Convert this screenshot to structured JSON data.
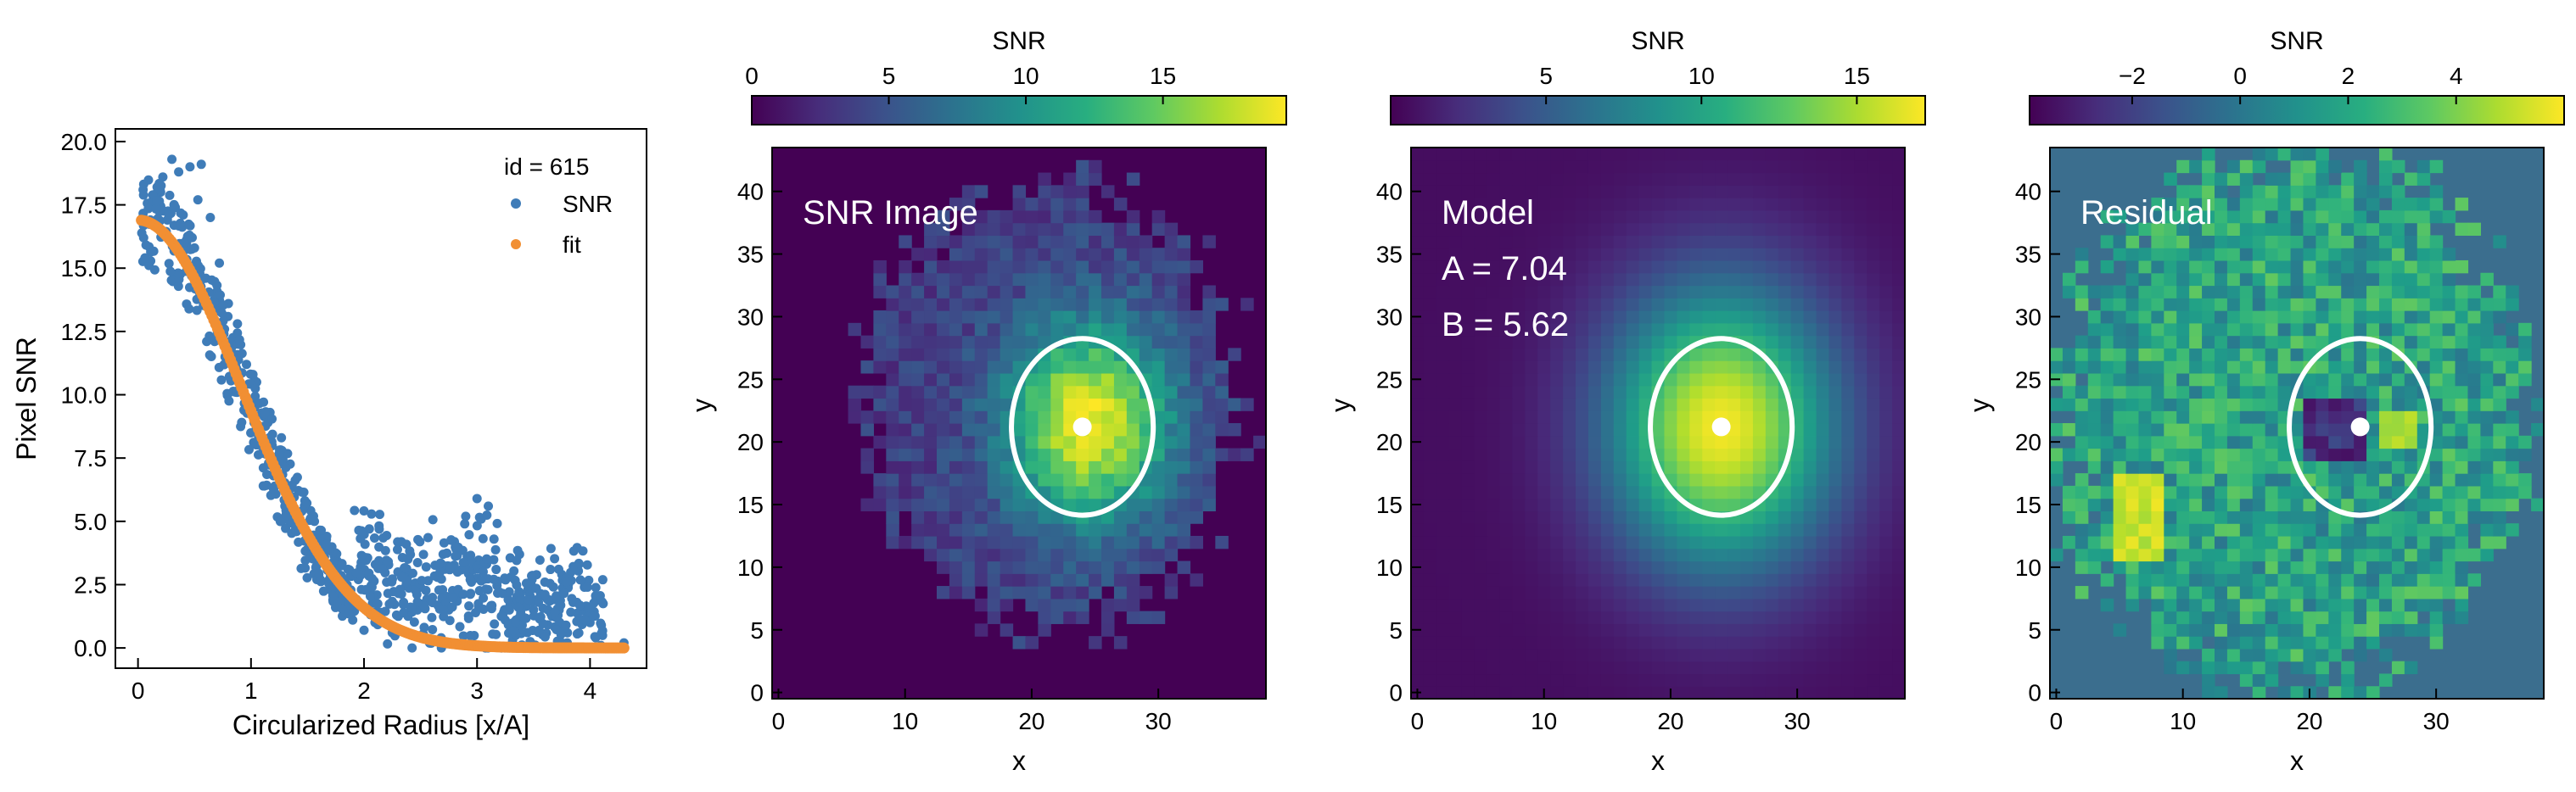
{
  "chart_data": [
    {
      "type": "scatter",
      "id_label": "id = 615",
      "xlabel": "Circularized Radius [x/A]",
      "ylabel": "Pixel SNR",
      "xlim": [
        -0.2,
        4.5
      ],
      "ylim": [
        -0.8,
        20.5
      ],
      "xticks": [
        0,
        1,
        2,
        3,
        4
      ],
      "xtick_labels": [
        "0",
        "1",
        "2",
        "3",
        "4"
      ],
      "yticks": [
        0.0,
        2.5,
        5.0,
        7.5,
        10.0,
        12.5,
        15.0,
        17.5,
        20.0
      ],
      "ytick_labels": [
        "0.0",
        "2.5",
        "5.0",
        "7.5",
        "10.0",
        "12.5",
        "15.0",
        "17.5",
        "20.0"
      ],
      "legend_position": "top-right",
      "series": [
        {
          "name": "SNR",
          "color": "#3f7cb8",
          "x": [
            0.05,
            0.12,
            0.16,
            0.2,
            0.22,
            0.26,
            0.3,
            0.33,
            0.36,
            0.4,
            0.43,
            0.46,
            0.5,
            0.53,
            0.56,
            0.6,
            0.64,
            0.68,
            0.72,
            0.76,
            0.8,
            0.84,
            0.88,
            0.92,
            0.96,
            1.0,
            1.05,
            1.1,
            1.15,
            1.2,
            1.25,
            1.3,
            1.35,
            1.4,
            1.45,
            1.5,
            1.55,
            1.6,
            1.65,
            1.7,
            1.75,
            1.8,
            1.85,
            1.9,
            1.95,
            2.0,
            2.05,
            2.1,
            2.15,
            2.2,
            2.25,
            2.3,
            2.35,
            2.4,
            2.45,
            2.5,
            2.55,
            2.6,
            2.65,
            2.7,
            2.75,
            2.8,
            2.85,
            2.9,
            2.95,
            3.0,
            3.05,
            3.1,
            3.15,
            3.2,
            3.25,
            3.3,
            3.35,
            3.4,
            3.45,
            3.5,
            3.55,
            3.6,
            3.65,
            3.7,
            3.75,
            3.8,
            3.85,
            3.9,
            3.95,
            4.0,
            4.05,
            4.1,
            4.3
          ],
          "y": [
            16.2,
            17.6,
            16.8,
            18.0,
            18.6,
            16.9,
            19.3,
            17.4,
            18.8,
            17.1,
            16.0,
            19.0,
            15.8,
            17.7,
            19.1,
            14.6,
            17.0,
            13.8,
            15.2,
            12.4,
            13.6,
            11.3,
            12.8,
            10.1,
            11.2,
            9.4,
            10.5,
            8.2,
            8.9,
            6.8,
            7.6,
            5.6,
            6.3,
            4.6,
            5.4,
            3.9,
            4.3,
            2.9,
            3.6,
            2.3,
            3.1,
            1.6,
            2.5,
            1.1,
            2.7,
            0.7,
            2.2,
            3.3,
            1.4,
            2.6,
            0.6,
            3.0,
            1.8,
            2.9,
            0.5,
            2.4,
            3.2,
            1.2,
            2.8,
            3.7,
            1.5,
            4.2,
            2.1,
            5.2,
            2.6,
            5.9,
            3.4,
            5.6,
            4.3,
            2.2,
            1.1,
            2.8,
            1.7,
            0.9,
            2.3,
            1.5,
            0.7,
            2.6,
            3.1,
            1.2,
            2.9,
            0.6,
            1.8,
            3.3,
            2.4,
            1.0,
            0.4,
            0.9,
            0.2
          ]
        },
        {
          "name": "fit",
          "color": "#f18f33",
          "model": "gaussian",
          "amplitude": 16.9,
          "sigma": 0.92,
          "x_range": [
            0.03,
            4.3
          ]
        }
      ]
    },
    {
      "type": "heatmap",
      "title_annotation": "SNR Image",
      "xlabel": "x",
      "ylabel": "y",
      "xlim": [
        -0.5,
        38.5
      ],
      "ylim": [
        -0.5,
        43.5
      ],
      "xticks": [
        0,
        10,
        20,
        30
      ],
      "xtick_labels": [
        "0",
        "10",
        "20",
        "30"
      ],
      "yticks": [
        0,
        5,
        10,
        15,
        20,
        25,
        30,
        35,
        40
      ],
      "ytick_labels": [
        "0",
        "5",
        "10",
        "15",
        "20",
        "25",
        "30",
        "35",
        "40"
      ],
      "colorbar": {
        "title": "SNR",
        "vmin": 0,
        "vmax": 19.5,
        "ticks": [
          0,
          5,
          10,
          15
        ],
        "tick_labels": [
          "0",
          "5",
          "10",
          "15"
        ]
      },
      "ellipse": {
        "cx": 24,
        "cy": 21.2,
        "rx": 5.6,
        "ry": 7.05
      },
      "center_marker": {
        "x": 24,
        "y": 21.2
      }
    },
    {
      "type": "heatmap",
      "title_annotation": "Model",
      "param_a": "A = 7.04",
      "param_b": "B = 5.62",
      "xlabel": "x",
      "ylabel": "y",
      "xlim": [
        -0.5,
        38.5
      ],
      "ylim": [
        -0.5,
        43.5
      ],
      "xticks": [
        0,
        10,
        20,
        30
      ],
      "xtick_labels": [
        "0",
        "10",
        "20",
        "30"
      ],
      "yticks": [
        0,
        5,
        10,
        15,
        20,
        25,
        30,
        35,
        40
      ],
      "ytick_labels": [
        "0",
        "5",
        "10",
        "15",
        "20",
        "25",
        "30",
        "35",
        "40"
      ],
      "colorbar": {
        "title": "SNR",
        "vmin": 0,
        "vmax": 17.2,
        "ticks": [
          5,
          10,
          15
        ],
        "tick_labels": [
          "5",
          "10",
          "15"
        ]
      },
      "ellipse": {
        "cx": 24,
        "cy": 21.2,
        "rx": 5.6,
        "ry": 7.05
      },
      "center_marker": {
        "x": 24,
        "y": 21.2
      }
    },
    {
      "type": "heatmap",
      "title_annotation": "Residual",
      "xlabel": "x",
      "ylabel": "y",
      "xlim": [
        -0.5,
        38.5
      ],
      "ylim": [
        -0.5,
        43.5
      ],
      "xticks": [
        0,
        10,
        20,
        30
      ],
      "xtick_labels": [
        "0",
        "10",
        "20",
        "30"
      ],
      "yticks": [
        0,
        5,
        10,
        15,
        20,
        25,
        30,
        35,
        40
      ],
      "ytick_labels": [
        "0",
        "5",
        "10",
        "15",
        "20",
        "25",
        "30",
        "35",
        "40"
      ],
      "colorbar": {
        "title": "SNR",
        "vmin": -3.9,
        "vmax": 6.0,
        "ticks": [
          -2,
          0,
          2,
          4
        ],
        "tick_labels": [
          "−2",
          "0",
          "2",
          "4"
        ]
      },
      "ellipse": {
        "cx": 24,
        "cy": 21.2,
        "rx": 5.6,
        "ry": 7.05
      },
      "center_marker": {
        "x": 24,
        "y": 21.2
      }
    }
  ]
}
